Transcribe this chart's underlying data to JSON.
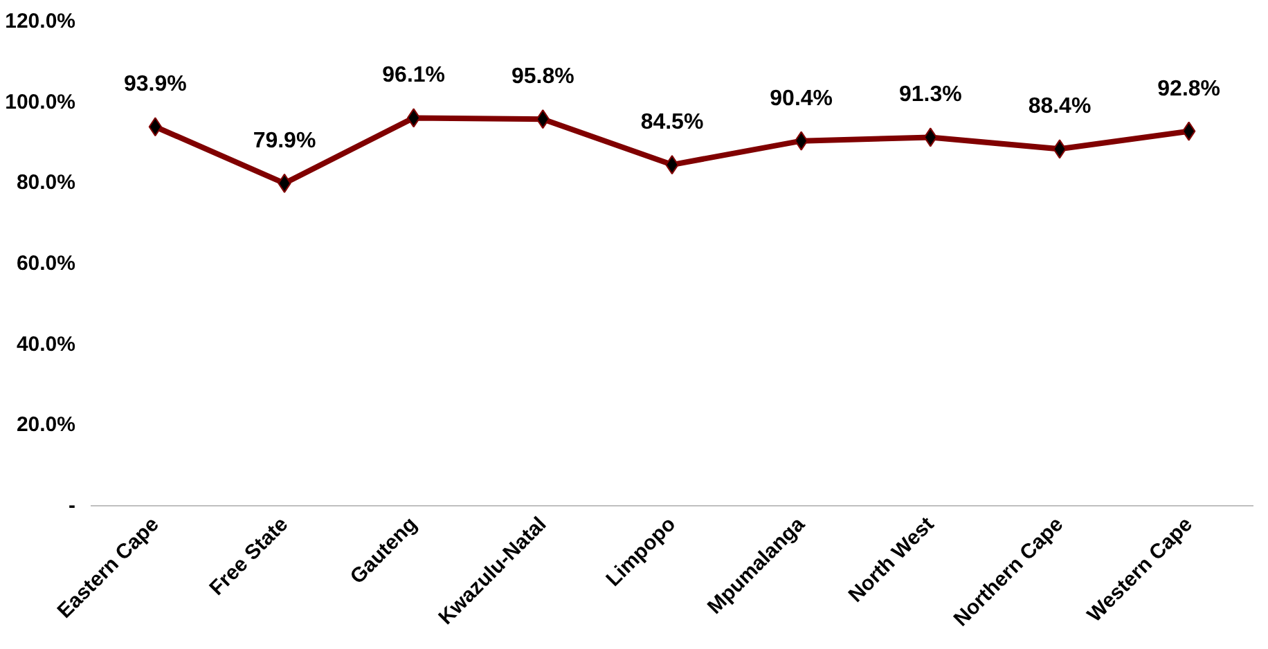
{
  "chart_data": {
    "type": "line",
    "categories": [
      "Eastern Cape",
      "Free State",
      "Gauteng",
      "Kwazulu-Natal",
      "Limpopo",
      "Mpumalanga",
      "North West",
      "Northern Cape",
      "Western Cape"
    ],
    "series": [
      {
        "color": "#800000",
        "values": [
          93.9,
          79.9,
          96.1,
          95.8,
          84.5,
          90.4,
          91.3,
          88.4,
          92.8
        ],
        "value_labels": [
          "93.9%",
          "79.9%",
          "96.1%",
          "95.8%",
          "84.5%",
          "90.4%",
          "91.3%",
          "88.4%",
          "92.8%"
        ]
      }
    ],
    "ylim": [
      0,
      120
    ],
    "yticks": [
      {
        "value": 0,
        "label": "-"
      },
      {
        "value": 20,
        "label": "20.0%"
      },
      {
        "value": 40,
        "label": "40.0%"
      },
      {
        "value": 60,
        "label": "60.0%"
      },
      {
        "value": 80,
        "label": "80.0%"
      },
      {
        "value": 100,
        "label": "100.0%"
      },
      {
        "value": 120,
        "label": "120.0%"
      }
    ],
    "marker": "diamond",
    "line_style": "solid",
    "grid": false
  }
}
